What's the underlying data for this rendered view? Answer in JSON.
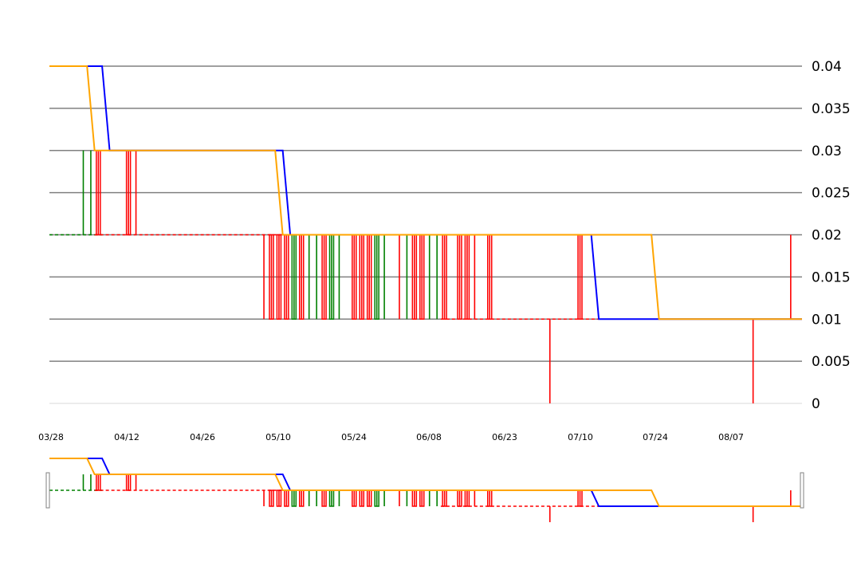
{
  "chart_data": {
    "type": "candlestick",
    "y_ticks": [
      "0.04",
      "0.035",
      "0.03",
      "0.025",
      "0.02",
      "0.015",
      "0.01",
      "0.005",
      "0"
    ],
    "x_ticks": [
      "03/28",
      "04/12",
      "04/26",
      "05/10",
      "05/24",
      "06/08",
      "06/23",
      "07/10",
      "07/24",
      "08/07"
    ],
    "ylim": [
      0,
      0.04
    ],
    "grid": true,
    "colors": {
      "up": "#008000",
      "down": "#ff0000",
      "line_a": "#0000ff",
      "line_b": "#ffa500",
      "grid": "#808080"
    },
    "navigator": true,
    "candles": [
      {
        "i": 4,
        "dir": "up",
        "o": 0.02,
        "c": 0.02,
        "h": 0.03,
        "l": 0.02
      },
      {
        "i": 5,
        "dir": "up",
        "o": 0.02,
        "c": 0.02,
        "h": 0.03,
        "l": 0.02
      },
      {
        "i": 6,
        "dir": "down",
        "o": 0.03,
        "c": 0.02,
        "h": 0.03,
        "l": 0.02
      },
      {
        "i": 10,
        "dir": "down",
        "o": 0.03,
        "c": 0.02,
        "h": 0.03,
        "l": 0.02
      },
      {
        "i": 11,
        "dir": "down",
        "o": 0.02,
        "c": 0.02,
        "h": 0.03,
        "l": 0.02
      },
      {
        "i": 28,
        "dir": "down",
        "o": 0.02,
        "c": 0.02,
        "h": 0.02,
        "l": 0.01
      },
      {
        "i": 29,
        "dir": "down",
        "o": 0.02,
        "c": 0.01,
        "h": 0.02,
        "l": 0.01
      },
      {
        "i": 30,
        "dir": "down",
        "o": 0.02,
        "c": 0.01,
        "h": 0.02,
        "l": 0.01
      },
      {
        "i": 31,
        "dir": "down",
        "o": 0.02,
        "c": 0.01,
        "h": 0.02,
        "l": 0.01
      },
      {
        "i": 32,
        "dir": "up",
        "o": 0.01,
        "c": 0.02,
        "h": 0.02,
        "l": 0.01
      },
      {
        "i": 33,
        "dir": "down",
        "o": 0.02,
        "c": 0.01,
        "h": 0.02,
        "l": 0.01
      },
      {
        "i": 34,
        "dir": "up",
        "o": 0.02,
        "c": 0.02,
        "h": 0.02,
        "l": 0.01
      },
      {
        "i": 35,
        "dir": "up",
        "o": 0.02,
        "c": 0.02,
        "h": 0.02,
        "l": 0.01
      },
      {
        "i": 36,
        "dir": "down",
        "o": 0.02,
        "c": 0.01,
        "h": 0.02,
        "l": 0.01
      },
      {
        "i": 37,
        "dir": "up",
        "o": 0.01,
        "c": 0.02,
        "h": 0.02,
        "l": 0.01
      },
      {
        "i": 38,
        "dir": "up",
        "o": 0.02,
        "c": 0.02,
        "h": 0.02,
        "l": 0.01
      },
      {
        "i": 40,
        "dir": "down",
        "o": 0.02,
        "c": 0.01,
        "h": 0.02,
        "l": 0.01
      },
      {
        "i": 41,
        "dir": "down",
        "o": 0.02,
        "c": 0.01,
        "h": 0.02,
        "l": 0.01
      },
      {
        "i": 42,
        "dir": "down",
        "o": 0.02,
        "c": 0.01,
        "h": 0.02,
        "l": 0.01
      },
      {
        "i": 43,
        "dir": "up",
        "o": 0.01,
        "c": 0.02,
        "h": 0.02,
        "l": 0.01
      },
      {
        "i": 44,
        "dir": "up",
        "o": 0.02,
        "c": 0.02,
        "h": 0.02,
        "l": 0.01
      },
      {
        "i": 46,
        "dir": "down",
        "o": 0.02,
        "c": 0.02,
        "h": 0.02,
        "l": 0.01
      },
      {
        "i": 47,
        "dir": "up",
        "o": 0.02,
        "c": 0.02,
        "h": 0.02,
        "l": 0.01
      },
      {
        "i": 48,
        "dir": "down",
        "o": 0.02,
        "c": 0.01,
        "h": 0.02,
        "l": 0.01
      },
      {
        "i": 49,
        "dir": "down",
        "o": 0.02,
        "c": 0.01,
        "h": 0.02,
        "l": 0.01
      },
      {
        "i": 50,
        "dir": "up",
        "o": 0.02,
        "c": 0.02,
        "h": 0.02,
        "l": 0.01
      },
      {
        "i": 51,
        "dir": "up",
        "o": 0.02,
        "c": 0.02,
        "h": 0.02,
        "l": 0.01
      },
      {
        "i": 52,
        "dir": "down",
        "o": 0.02,
        "c": 0.01,
        "h": 0.02,
        "l": 0.01
      },
      {
        "i": 54,
        "dir": "down",
        "o": 0.02,
        "c": 0.01,
        "h": 0.02,
        "l": 0.01
      },
      {
        "i": 55,
        "dir": "down",
        "o": 0.02,
        "c": 0.01,
        "h": 0.02,
        "l": 0.01
      },
      {
        "i": 56,
        "dir": "down",
        "o": 0.02,
        "c": 0.02,
        "h": 0.02,
        "l": 0.01
      },
      {
        "i": 58,
        "dir": "down",
        "o": 0.02,
        "c": 0.01,
        "h": 0.02,
        "l": 0.01
      },
      {
        "i": 66,
        "dir": "down",
        "o": 0.01,
        "c": 0.01,
        "h": 0.01,
        "l": 0.0
      },
      {
        "i": 70,
        "dir": "down",
        "o": 0.02,
        "c": 0.01,
        "h": 0.02,
        "l": 0.01
      },
      {
        "i": 93,
        "dir": "down",
        "o": 0.01,
        "c": 0.01,
        "h": 0.01,
        "l": 0.0
      },
      {
        "i": 98,
        "dir": "down",
        "o": 0.01,
        "c": 0.01,
        "h": 0.02,
        "l": 0.01
      }
    ],
    "series": [
      {
        "color": "#0000ff",
        "points": [
          [
            0,
            0.04
          ],
          [
            7,
            0.04
          ],
          [
            8,
            0.03
          ],
          [
            31,
            0.03
          ],
          [
            32,
            0.02
          ],
          [
            72,
            0.02
          ],
          [
            73,
            0.01
          ],
          [
            99,
            0.01
          ]
        ]
      },
      {
        "color": "#ffa500",
        "points": [
          [
            0,
            0.04
          ],
          [
            5,
            0.04
          ],
          [
            6,
            0.03
          ],
          [
            30,
            0.03
          ],
          [
            31,
            0.02
          ],
          [
            80,
            0.02
          ],
          [
            81,
            0.01
          ],
          [
            99,
            0.01
          ]
        ]
      }
    ],
    "baseline": {
      "points": [
        [
          0,
          0.02
        ],
        [
          6,
          0.02
        ],
        [
          6,
          0.02
        ],
        [
          31,
          0.02
        ]
      ],
      "segments": [
        {
          "from": 0,
          "to": 6,
          "value": 0.02,
          "color": "#008000"
        },
        {
          "from": 6,
          "to": 31,
          "value": 0.02,
          "color": "#ff0000"
        },
        {
          "from": 52,
          "to": 99,
          "value": 0.01,
          "color": "#ff0000"
        }
      ]
    }
  }
}
